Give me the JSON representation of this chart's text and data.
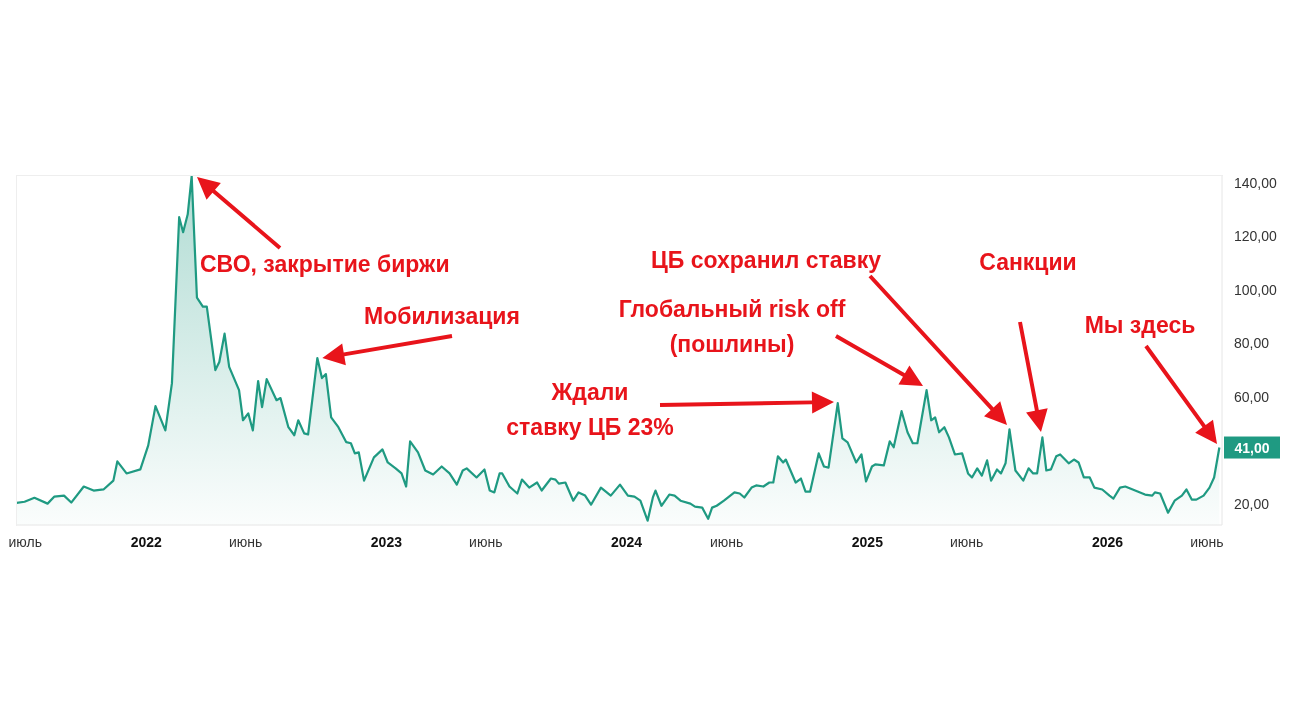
{
  "chart_data": {
    "type": "area",
    "color": "#1f9a82",
    "x": [
      "2021-06-18",
      "2021-06-30",
      "2021-07-15",
      "2021-08-04",
      "2021-08-14",
      "2021-08-29",
      "2021-09-09",
      "2021-09-28",
      "2021-10-13",
      "2021-10-28",
      "2021-11-12",
      "2021-11-18",
      "2021-12-02",
      "2021-12-23",
      "2022-01-04",
      "2022-01-15",
      "2022-01-30",
      "2022-02-09",
      "2022-02-20",
      "2022-02-26",
      "2022-03-05",
      "2022-03-11",
      "2022-03-19",
      "2022-03-28",
      "2022-04-03",
      "2022-04-16",
      "2022-04-22",
      "2022-04-30",
      "2022-05-07",
      "2022-05-22",
      "2022-05-28",
      "2022-06-05",
      "2022-06-12",
      "2022-06-20",
      "2022-06-26",
      "2022-07-03",
      "2022-07-18",
      "2022-07-24",
      "2022-08-05",
      "2022-08-14",
      "2022-08-20",
      "2022-08-29",
      "2022-09-04",
      "2022-09-18",
      "2022-09-25",
      "2022-10-01",
      "2022-10-09",
      "2022-10-20",
      "2022-11-01",
      "2022-11-08",
      "2022-11-14",
      "2022-11-20",
      "2022-11-28",
      "2022-12-13",
      "2022-12-26",
      "2023-01-03",
      "2023-01-15",
      "2023-01-24",
      "2023-01-31",
      "2023-02-06",
      "2023-02-18",
      "2023-03-01",
      "2023-03-13",
      "2023-03-26",
      "2023-04-07",
      "2023-04-18",
      "2023-04-27",
      "2023-05-03",
      "2023-05-18",
      "2023-05-30",
      "2023-06-07",
      "2023-06-14",
      "2023-06-22",
      "2023-06-26",
      "2023-07-07",
      "2023-07-19",
      "2023-07-26",
      "2023-08-06",
      "2023-08-18",
      "2023-08-25",
      "2023-09-08",
      "2023-09-15",
      "2023-09-20",
      "2023-09-30",
      "2023-10-12",
      "2023-10-20",
      "2023-10-30",
      "2023-11-08",
      "2023-11-23",
      "2023-12-08",
      "2023-12-22",
      "2024-01-03",
      "2024-01-13",
      "2024-01-22",
      "2024-02-02",
      "2024-02-10",
      "2024-02-14",
      "2024-02-23",
      "2024-03-06",
      "2024-03-14",
      "2024-03-23",
      "2024-04-07",
      "2024-04-14",
      "2024-04-25",
      "2024-05-04",
      "2024-05-10",
      "2024-05-17",
      "2024-05-28",
      "2024-06-13",
      "2024-06-21",
      "2024-06-28",
      "2024-07-09",
      "2024-07-16",
      "2024-07-27",
      "2024-08-05",
      "2024-08-11",
      "2024-08-18",
      "2024-08-26",
      "2024-08-30",
      "2024-09-14",
      "2024-09-22",
      "2024-09-29",
      "2024-10-06",
      "2024-10-19",
      "2024-10-27",
      "2024-11-03",
      "2024-11-17",
      "2024-11-24",
      "2024-12-02",
      "2024-12-15",
      "2024-12-23",
      "2024-12-30",
      "2025-01-08",
      "2025-01-13",
      "2025-01-26",
      "2025-02-04",
      "2025-02-10",
      "2025-02-22",
      "2025-03-03",
      "2025-03-11",
      "2025-03-18",
      "2025-04-01",
      "2025-04-08",
      "2025-04-14",
      "2025-04-20",
      "2025-04-28",
      "2025-05-05",
      "2025-05-14",
      "2025-05-25",
      "2025-06-03",
      "2025-06-09",
      "2025-06-17",
      "2025-06-24",
      "2025-07-02",
      "2025-07-08",
      "2025-07-17",
      "2025-07-23",
      "2025-07-30",
      "2025-08-05",
      "2025-08-14",
      "2025-08-26",
      "2025-09-03",
      "2025-09-10",
      "2025-09-16",
      "2025-09-24",
      "2025-09-30",
      "2025-10-07",
      "2025-10-15",
      "2025-10-21",
      "2025-11-03",
      "2025-11-11",
      "2025-11-18",
      "2025-11-26",
      "2025-12-05",
      "2025-12-12",
      "2025-12-24",
      "2026-01-04",
      "2026-01-10",
      "2026-01-20",
      "2026-01-28",
      "2026-02-12",
      "2026-02-27",
      "2026-03-10",
      "2026-03-14",
      "2026-03-22",
      "2026-04-03",
      "2026-04-13",
      "2026-04-24",
      "2026-05-01",
      "2026-05-09",
      "2026-05-16",
      "2026-05-27",
      "2026-06-05",
      "2026-06-12",
      "2026-06-20"
    ],
    "values": [
      20.3,
      20.7,
      22.2,
      20,
      22.6,
      23,
      20.4,
      26.4,
      24.9,
      25.3,
      28.6,
      35.8,
      31.3,
      32.8,
      41.8,
      56.5,
      47.4,
      65.1,
      127.2,
      121.6,
      128.3,
      142.6,
      97.1,
      93.7,
      93.7,
      70,
      73,
      83.6,
      71.2,
      62.5,
      51.2,
      53.8,
      47.4,
      65.9,
      56.1,
      66.6,
      58.7,
      59.5,
      48.6,
      45.6,
      51.2,
      46.3,
      45.9,
      74.5,
      67,
      68.5,
      52.3,
      48.6,
      43,
      42.6,
      38.8,
      39.2,
      28.6,
      37.3,
      40.3,
      35.4,
      33.2,
      31.3,
      26.4,
      43.3,
      39.2,
      32.4,
      30.9,
      33.9,
      31.3,
      27.1,
      32.4,
      33.2,
      29.8,
      32.8,
      24.9,
      24.2,
      31.3,
      31.3,
      26.4,
      23.8,
      29,
      26,
      27.9,
      24.9,
      29.4,
      29,
      27.5,
      27.9,
      21.1,
      24.2,
      23,
      19.6,
      26,
      23,
      27.1,
      23,
      22.6,
      21.1,
      13.6,
      22.3,
      24.9,
      19.2,
      23.4,
      23,
      21.1,
      20,
      18.9,
      18.5,
      14.3,
      18.5,
      19.2,
      21.1,
      24.2,
      23.8,
      22.3,
      26,
      26.8,
      26.4,
      27.9,
      27.9,
      37.7,
      35.4,
      36.5,
      27.9,
      29.4,
      24.5,
      24.5,
      38.8,
      33.9,
      33.5,
      57.6,
      44.4,
      42.9,
      35.4,
      38.4,
      28.3,
      33.9,
      34.7,
      34.3,
      43.3,
      41.1,
      54.6,
      46.7,
      42.6,
      42.6,
      62.5,
      51.2,
      52.3,
      46.7,
      48.6,
      44.8,
      38.4,
      38.8,
      31.3,
      29.8,
      33.2,
      30.5,
      36.2,
      28.6,
      32.8,
      31.3,
      35.1,
      47.8,
      32.4,
      28.6,
      33.2,
      31.3,
      31.3,
      44.8,
      32.4,
      32.8,
      37.7,
      38.4,
      35.1,
      36.5,
      35.4,
      29.8,
      29.8,
      26,
      25.3,
      23,
      21.9,
      26,
      26.4,
      24.9,
      23.4,
      23,
      24.2,
      23.8,
      16.6,
      21.1,
      23,
      25.3,
      21.5,
      21.5,
      23,
      26,
      29.8,
      41
    ],
    "xlim": [
      "2021-06-17",
      "2026-06-24"
    ],
    "xticks": [
      {
        "value": "2021-07-01",
        "label": "июль"
      },
      {
        "value": "2022-01-01",
        "label": "2022"
      },
      {
        "value": "2022-06-01",
        "label": "июнь"
      },
      {
        "value": "2023-01-01",
        "label": "2023"
      },
      {
        "value": "2023-06-01",
        "label": "июнь"
      },
      {
        "value": "2024-01-01",
        "label": "2024"
      },
      {
        "value": "2024-06-01",
        "label": "июнь"
      },
      {
        "value": "2025-01-01",
        "label": "2025"
      },
      {
        "value": "2025-06-01",
        "label": "июнь"
      },
      {
        "value": "2026-01-01",
        "label": "2026"
      },
      {
        "value": "2026-06-01",
        "label": "июнь"
      }
    ],
    "ylim": [
      12,
      143
    ],
    "yticks": [
      {
        "value": 20,
        "label": "20,00"
      },
      {
        "value": 60,
        "label": "60,00"
      },
      {
        "value": 80,
        "label": "80,00"
      },
      {
        "value": 100,
        "label": "100,00"
      },
      {
        "value": 120,
        "label": "120,00"
      },
      {
        "value": 140,
        "label": "140,00"
      }
    ],
    "grid": false,
    "legend": false,
    "annotations": [
      "СВО, закрытие биржи",
      {
        "text": "Мобилизация",
        "x": "2022-09-18",
        "y": 74.5
      },
      "Ждали\nставку ЦБ 23%",
      "Глобальный risk off\n(пошлины)",
      "ЦБ сохранил ставку",
      "Санкции",
      "Мы здесь",
      {
        "text": "41,00",
        "x": "2026-06-20",
        "y": 41
      }
    ]
  }
}
